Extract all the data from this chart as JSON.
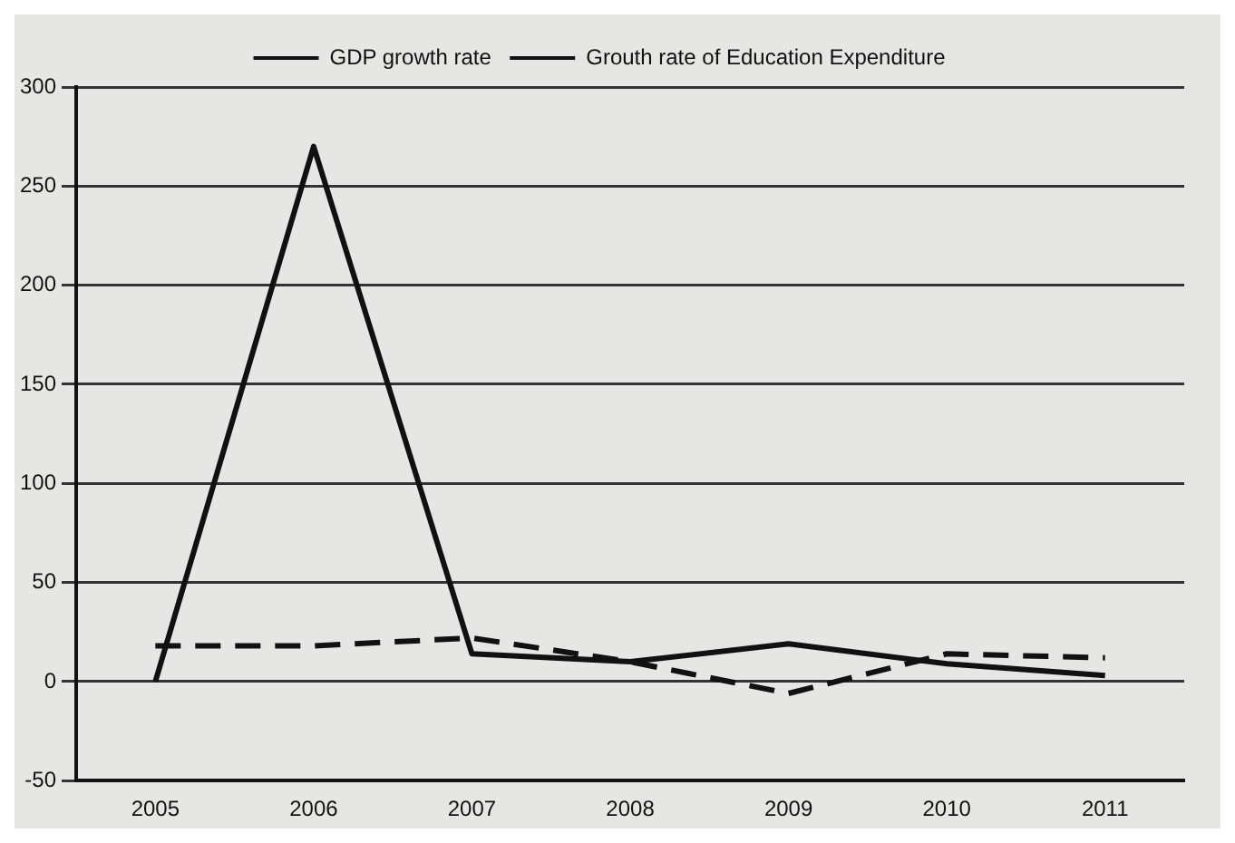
{
  "chart_data": {
    "type": "line",
    "categories": [
      "2005",
      "2006",
      "2007",
      "2008",
      "2009",
      "2010",
      "2011"
    ],
    "series": [
      {
        "name": "GDP growth rate",
        "color": "#111111",
        "line_style": "dashed",
        "values": [
          18,
          18,
          22,
          10,
          -6,
          14,
          12
        ]
      },
      {
        "name": "Grouth rate of Education Expenditure",
        "color": "#111111",
        "line_style": "solid",
        "values": [
          0,
          270,
          14,
          10,
          19,
          9,
          3
        ]
      }
    ],
    "ylim": [
      -50,
      300
    ],
    "yticks": [
      -50,
      0,
      50,
      100,
      150,
      200,
      250,
      300
    ],
    "grid": "y",
    "legend": "top",
    "marker": "none"
  }
}
